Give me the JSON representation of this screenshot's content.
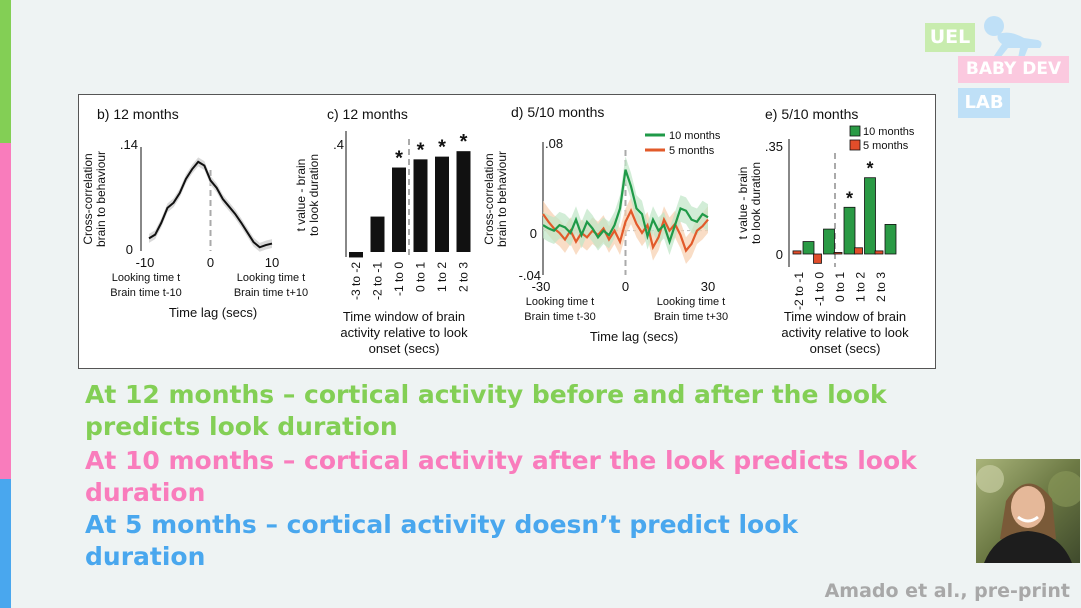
{
  "colors": {
    "green": "#83cf55",
    "pink": "#f97cbc",
    "blue": "#49a7ee",
    "light_green": "#c8ecae",
    "light_pink": "#fbc9df",
    "light_blue": "#bfe0f7",
    "bar_green": "#2a9a45",
    "bar_red": "#e14d2a",
    "line_green": "#1f9a48",
    "line_red": "#e25a2a"
  },
  "logo": {
    "uel": "UEL",
    "babydev": "BABY DEV",
    "lab": "LAB"
  },
  "statements": [
    {
      "text": "At 12 months – cortical activity before and after the look predicts look duration",
      "color": "green"
    },
    {
      "text": "At 10 months – cortical activity after the look predicts look duration",
      "color": "pink"
    },
    {
      "text": "At 5 months – cortical activity doesn’t predict look duration",
      "color": "blue"
    }
  ],
  "citation": "Amado et al., pre-print",
  "chart_data": [
    {
      "panel_label": "b) 12 months",
      "type": "line",
      "ylabel_lines": [
        "Cross-correlation",
        "brain to behaviour"
      ],
      "xlabel": "Time lag (secs)",
      "x_ticks": [
        "-10",
        "0",
        "10"
      ],
      "y_ticks": [
        ".14",
        "0"
      ],
      "xlim": [
        -10,
        10
      ],
      "ylim": [
        0,
        0.14
      ],
      "annotations": [
        [
          "Looking time t",
          "Brain time t-10"
        ],
        [
          "Looking time t",
          "Brain time t+10"
        ]
      ],
      "series": [
        {
          "x": [
            -10,
            -9,
            -8,
            -7,
            -6,
            -5,
            -4,
            -3,
            -2,
            -1,
            0,
            1,
            2,
            3,
            4,
            5,
            6,
            7,
            8,
            9,
            10
          ],
          "values": [
            0.017,
            0.022,
            0.038,
            0.058,
            0.065,
            0.078,
            0.097,
            0.11,
            0.12,
            0.115,
            0.095,
            0.085,
            0.07,
            0.06,
            0.05,
            0.038,
            0.025,
            0.012,
            0.005,
            0.008,
            0.01
          ]
        }
      ]
    },
    {
      "panel_label": "c) 12 months",
      "type": "bar",
      "ylabel_lines": [
        "t value - brain",
        "to look duration"
      ],
      "xlabel_lines": [
        "Time window of brain",
        "activity relative to look",
        "onset (secs)"
      ],
      "y_ticks": [
        ".4"
      ],
      "ylim": [
        -0.04,
        0.44
      ],
      "categories": [
        "-3 to -2",
        "-2 to -1",
        "-1 to 0",
        "0 to 1",
        "1 to 2",
        "2 to 3"
      ],
      "values": [
        -0.02,
        0.13,
        0.31,
        0.34,
        0.35,
        0.37
      ],
      "significant": [
        false,
        false,
        true,
        true,
        true,
        true
      ],
      "marker": "*"
    },
    {
      "panel_label": "d) 5/10 months",
      "type": "line",
      "ylabel_lines": [
        "Cross-correlation",
        "brain to behaviour"
      ],
      "xlabel": "Time lag (secs)",
      "x_ticks": [
        "-30",
        "0",
        "30"
      ],
      "y_ticks": [
        ".08",
        "0",
        "-.04"
      ],
      "xlim": [
        -30,
        30
      ],
      "ylim": [
        -0.04,
        0.08
      ],
      "legend": [
        "10 months",
        "5 months"
      ],
      "annotations": [
        [
          "Looking time t",
          "Brain time t-30"
        ],
        [
          "Looking time t",
          "Brain time t+30"
        ]
      ],
      "series": [
        {
          "name": "10 months",
          "x": [
            -30,
            -28,
            -26,
            -24,
            -22,
            -20,
            -18,
            -16,
            -14,
            -12,
            -10,
            -8,
            -6,
            -4,
            -2,
            0,
            2,
            4,
            6,
            8,
            10,
            12,
            14,
            16,
            18,
            20,
            22,
            24,
            26,
            28,
            30
          ],
          "values": [
            0.005,
            0.002,
            0.0,
            0.005,
            0.003,
            -0.002,
            0.01,
            -0.004,
            0.008,
            0.002,
            -0.006,
            0.0,
            -0.004,
            0.005,
            0.02,
            0.055,
            0.04,
            0.02,
            0.015,
            -0.005,
            0.01,
            0.0,
            0.005,
            -0.01,
            0.005,
            0.02,
            0.018,
            0.01,
            0.008,
            0.015,
            0.012
          ]
        },
        {
          "name": "5 months",
          "x": [
            -30,
            -28,
            -26,
            -24,
            -22,
            -20,
            -18,
            -16,
            -14,
            -12,
            -10,
            -8,
            -6,
            -4,
            -2,
            0,
            2,
            4,
            6,
            8,
            10,
            12,
            14,
            16,
            18,
            20,
            22,
            24,
            26,
            28,
            30
          ],
          "values": [
            0.015,
            0.008,
            0.002,
            -0.002,
            -0.008,
            0.0,
            -0.01,
            -0.002,
            -0.006,
            0.0,
            -0.004,
            0.002,
            -0.008,
            0.0,
            -0.01,
            0.008,
            0.018,
            0.006,
            -0.002,
            0.005,
            -0.015,
            -0.006,
            0.01,
            0.0,
            0.006,
            -0.004,
            -0.018,
            -0.012,
            0.0,
            0.004,
            0.01
          ]
        }
      ]
    },
    {
      "panel_label": "e) 5/10 months",
      "type": "bar",
      "ylabel_lines": [
        "t value - brain",
        "to look duration"
      ],
      "xlabel_lines": [
        "Time window of brain",
        "activity relative to look",
        "onset (secs)"
      ],
      "y_ticks": [
        ".35",
        "0"
      ],
      "ylim": [
        -0.05,
        0.38
      ],
      "legend": [
        "10 months",
        "5 months"
      ],
      "categories": [
        "-2 to -1",
        "-1 to 0",
        "0 to 1",
        "1 to 2",
        "2 to 3"
      ],
      "series": [
        {
          "name": "10 months",
          "values": [
            0.04,
            0.08,
            0.15,
            0.245,
            0.095
          ],
          "significant": [
            false,
            false,
            true,
            true,
            false
          ]
        },
        {
          "name": "5 months",
          "values": [
            0.01,
            -0.03,
            0.005,
            0.02,
            0.01
          ],
          "significant": [
            false,
            false,
            false,
            false,
            false
          ]
        }
      ],
      "marker": "*"
    }
  ]
}
